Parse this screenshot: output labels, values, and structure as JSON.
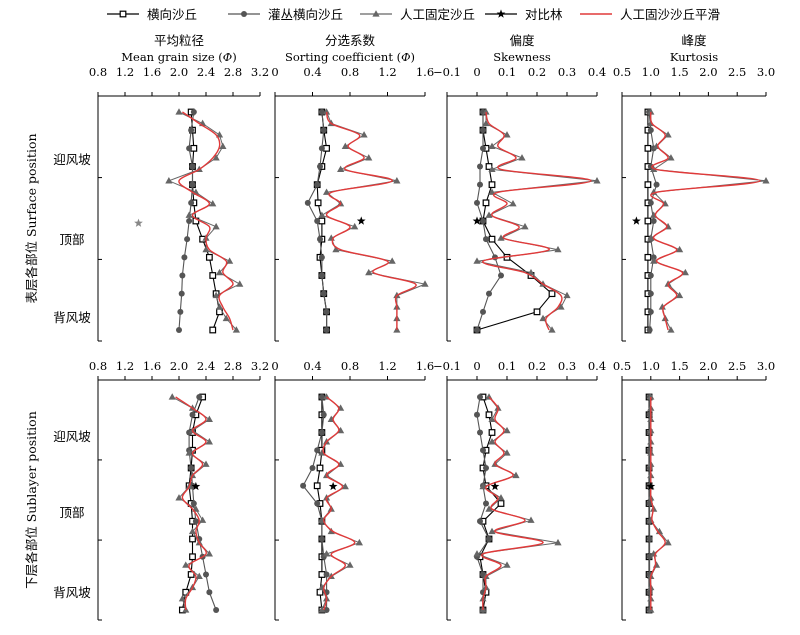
{
  "chart_data": {
    "type": "line",
    "legend": {
      "placement": "top",
      "entries": [
        {
          "name": "横向沙丘",
          "marker": "square-open",
          "color": "#000000"
        },
        {
          "name": "灌丛横向沙丘",
          "marker": "circle",
          "color": "#555555"
        },
        {
          "name": "人工固定沙丘",
          "marker": "triangle",
          "color": "#666666"
        },
        {
          "name": "对比林",
          "marker": "star",
          "color": "#000000"
        },
        {
          "name": "人工固沙沙丘平滑",
          "marker": "none",
          "color": "#e03a3a"
        }
      ]
    },
    "rows": [
      {
        "label": "表层各部位 Surface position",
        "categories": [
          "迎风坡",
          "顶部",
          "背风坡"
        ]
      },
      {
        "label": "下层各部位 Sublayer position",
        "categories": [
          "迎风坡",
          "顶部",
          "背风坡"
        ]
      }
    ],
    "panels": [
      {
        "title_cn": "平均粒径",
        "title_en_prefix": "Mean grain size (",
        "title_symbol": "Φ",
        "title_en_suffix": ")",
        "xlim": [
          0.8,
          3.2
        ],
        "ticks": [
          0.8,
          1.2,
          1.6,
          2.0,
          2.4,
          2.8,
          3.2
        ],
        "tick_labels": [
          "0.8",
          "1.2",
          "1.6",
          "2.0",
          "2.4",
          "2.8",
          "3.2"
        ],
        "surface": {
          "transverse": [
            2.18,
            2.2,
            2.22,
            2.2,
            2.2,
            2.22,
            2.25,
            2.35,
            2.45,
            2.5,
            2.55,
            2.6,
            2.5
          ],
          "shrub": [
            2.22,
            2.18,
            2.15,
            2.2,
            2.2,
            2.18,
            2.15,
            2.12,
            2.08,
            2.05,
            2.04,
            2.02,
            2.0
          ],
          "fixed": [
            2.0,
            2.35,
            2.6,
            2.65,
            2.55,
            2.3,
            1.85,
            2.25,
            2.5,
            2.15,
            2.55,
            2.4,
            2.4,
            2.75,
            2.6,
            2.9,
            2.55,
            2.6,
            2.7,
            2.85
          ],
          "smooth": [
            2.05,
            2.3,
            2.55,
            2.6,
            2.5,
            2.3,
            2.0,
            2.2,
            2.45,
            2.2,
            2.45,
            2.4,
            2.45,
            2.7,
            2.65,
            2.8,
            2.6,
            2.65,
            2.75,
            2.8
          ],
          "control": {
            "x": 1.4,
            "pos": 0.51
          }
        },
        "sublayer": {
          "transverse": [
            2.35,
            2.25,
            2.2,
            2.2,
            2.18,
            2.15,
            2.18,
            2.2,
            2.2,
            2.2,
            2.18,
            2.1,
            2.05
          ],
          "shrub": [
            2.3,
            2.2,
            2.15,
            2.15,
            2.18,
            2.2,
            2.22,
            2.25,
            2.3,
            2.35,
            2.4,
            2.45,
            2.55
          ],
          "fixed": [
            1.9,
            2.2,
            2.45,
            2.2,
            2.45,
            2.15,
            2.4,
            2.2,
            2.15,
            2.0,
            2.25,
            2.35,
            2.2,
            2.3,
            2.45,
            2.1,
            2.3,
            2.2,
            2.05,
            2.1
          ],
          "smooth": [
            1.95,
            2.2,
            2.4,
            2.2,
            2.4,
            2.2,
            2.35,
            2.2,
            2.15,
            2.05,
            2.2,
            2.3,
            2.25,
            2.3,
            2.4,
            2.15,
            2.25,
            2.2,
            2.1,
            2.1
          ],
          "control": {
            "x": 2.25,
            "pos": 0.42
          }
        }
      },
      {
        "title_cn": "分选系数",
        "title_en_prefix": "Sorting coefficient (",
        "title_symbol": "Φ",
        "title_en_suffix": ")",
        "xlim": [
          0,
          1.6
        ],
        "ticks": [
          0,
          0.4,
          0.8,
          1.2,
          1.6
        ],
        "tick_labels": [
          "0",
          "0.4",
          "0.8",
          "1.2",
          "1.6"
        ],
        "surface": {
          "transverse": [
            0.5,
            0.52,
            0.55,
            0.5,
            0.45,
            0.46,
            0.5,
            0.5,
            0.48,
            0.5,
            0.52,
            0.55,
            0.55
          ],
          "shrub": [
            0.5,
            0.52,
            0.5,
            0.48,
            0.45,
            0.35,
            0.45,
            0.48,
            0.5,
            0.5,
            0.52,
            0.55,
            0.55
          ],
          "fixed": [
            0.55,
            0.6,
            0.95,
            0.75,
            1.0,
            0.7,
            1.3,
            0.55,
            0.7,
            0.5,
            0.85,
            0.6,
            0.65,
            1.25,
            1.0,
            1.6,
            1.3,
            1.3,
            1.3,
            1.3
          ],
          "smooth": [
            0.55,
            0.6,
            0.9,
            0.78,
            0.95,
            0.75,
            1.25,
            0.6,
            0.7,
            0.55,
            0.8,
            0.62,
            0.7,
            1.2,
            1.05,
            1.5,
            1.3,
            1.3,
            1.3,
            1.3
          ],
          "control": {
            "x": 0.92,
            "pos": 0.5
          }
        },
        "sublayer": {
          "transverse": [
            0.5,
            0.5,
            0.5,
            0.5,
            0.48,
            0.45,
            0.48,
            0.5,
            0.5,
            0.5,
            0.5,
            0.48,
            0.5
          ],
          "shrub": [
            0.5,
            0.52,
            0.5,
            0.45,
            0.4,
            0.3,
            0.45,
            0.5,
            0.5,
            0.52,
            0.55,
            0.55,
            0.55
          ],
          "fixed": [
            0.55,
            0.7,
            0.6,
            0.7,
            0.55,
            0.5,
            0.7,
            0.55,
            0.75,
            0.55,
            0.6,
            0.5,
            0.6,
            0.9,
            0.55,
            0.8,
            0.6,
            0.5,
            0.55,
            0.5
          ],
          "smooth": [
            0.55,
            0.68,
            0.62,
            0.68,
            0.55,
            0.52,
            0.68,
            0.55,
            0.72,
            0.55,
            0.6,
            0.52,
            0.62,
            0.85,
            0.6,
            0.75,
            0.6,
            0.52,
            0.55,
            0.52
          ],
          "control": {
            "x": 0.62,
            "pos": 0.42
          }
        }
      },
      {
        "title_cn": "偏度",
        "title_en": "Skewness",
        "xlim": [
          -0.1,
          0.4
        ],
        "ticks": [
          -0.1,
          0,
          0.1,
          0.2,
          0.3,
          0.4
        ],
        "tick_labels": [
          "−0.1",
          "0",
          "0.1",
          "0.2",
          "0.3",
          "0.4"
        ],
        "surface": {
          "transverse": [
            0.02,
            0.02,
            0.03,
            0.04,
            0.05,
            0.03,
            0.02,
            0.05,
            0.1,
            0.18,
            0.25,
            0.2,
            0.0
          ],
          "shrub": [
            0.02,
            0.02,
            0.02,
            0.01,
            0.01,
            0.0,
            0.02,
            0.03,
            0.06,
            0.08,
            0.04,
            0.02,
            0.0
          ],
          "fixed": [
            0.03,
            0.03,
            0.1,
            0.05,
            0.15,
            0.05,
            0.4,
            0.05,
            0.12,
            0.04,
            0.16,
            0.08,
            0.27,
            0.0,
            0.18,
            0.22,
            0.3,
            0.28,
            0.22,
            0.25
          ],
          "smooth": [
            0.03,
            0.04,
            0.09,
            0.07,
            0.13,
            0.08,
            0.38,
            0.07,
            0.1,
            0.05,
            0.14,
            0.09,
            0.24,
            0.02,
            0.16,
            0.22,
            0.28,
            0.27,
            0.23,
            0.24
          ],
          "control": {
            "x": 0.0,
            "pos": 0.5
          }
        },
        "sublayer": {
          "transverse": [
            0.02,
            0.04,
            0.05,
            0.03,
            0.02,
            0.03,
            0.08,
            0.02,
            0.04,
            0.01,
            0.02,
            0.03,
            0.02
          ],
          "shrub": [
            0.01,
            0.0,
            0.01,
            0.02,
            0.03,
            0.02,
            0.03,
            0.01,
            0.04,
            0.0,
            0.02,
            0.02,
            0.02
          ],
          "fixed": [
            0.04,
            0.07,
            0.05,
            0.1,
            0.05,
            0.1,
            0.06,
            0.13,
            0.02,
            0.08,
            0.04,
            0.18,
            0.05,
            0.27,
            0.0,
            0.1,
            0.03,
            0.03,
            0.02,
            0.02
          ],
          "smooth": [
            0.04,
            0.07,
            0.06,
            0.09,
            0.06,
            0.09,
            0.06,
            0.12,
            0.03,
            0.07,
            0.05,
            0.16,
            0.06,
            0.22,
            0.02,
            0.08,
            0.03,
            0.03,
            0.02,
            0.02
          ],
          "control": {
            "x": 0.06,
            "pos": 0.42
          }
        }
      },
      {
        "title_cn": "峰度",
        "title_en": "Kurtosis",
        "xlim": [
          0.5,
          3.0
        ],
        "ticks": [
          0.5,
          1.0,
          1.5,
          2.0,
          2.5,
          3.0
        ],
        "tick_labels": [
          "0.5",
          "1.0",
          "1.5",
          "2.0",
          "2.5",
          "3.0"
        ],
        "surface": {
          "transverse": [
            0.95,
            0.95,
            0.95,
            0.95,
            0.95,
            0.95,
            0.95,
            0.95,
            0.95,
            0.95,
            0.95,
            0.95,
            0.95
          ],
          "shrub": [
            0.97,
            1.0,
            1.05,
            1.0,
            1.1,
            1.0,
            1.05,
            1.0,
            1.05,
            1.0,
            1.0,
            1.0,
            0.98
          ],
          "fixed": [
            1.0,
            1.0,
            1.3,
            1.1,
            1.35,
            1.05,
            3.0,
            1.05,
            1.25,
            1.05,
            1.3,
            1.0,
            1.5,
            1.05,
            1.6,
            1.3,
            1.5,
            1.2,
            1.25,
            1.35
          ],
          "smooth": [
            1.0,
            1.02,
            1.25,
            1.12,
            1.3,
            1.1,
            2.9,
            1.1,
            1.22,
            1.08,
            1.28,
            1.05,
            1.45,
            1.1,
            1.55,
            1.3,
            1.45,
            1.22,
            1.25,
            1.3
          ],
          "control": {
            "x": 0.75,
            "pos": 0.5
          }
        },
        "sublayer": {
          "transverse": [
            0.97,
            0.97,
            0.97,
            0.97,
            0.97,
            0.97,
            0.97,
            0.97,
            0.97,
            0.97,
            0.97,
            0.97,
            0.97
          ],
          "shrub": [
            0.98,
            0.98,
            0.98,
            0.98,
            0.98,
            0.98,
            0.98,
            0.98,
            0.98,
            0.98,
            0.98,
            0.98,
            0.98
          ],
          "fixed": [
            1.0,
            1.0,
            1.0,
            1.0,
            1.0,
            1.0,
            1.0,
            1.0,
            1.0,
            1.0,
            1.05,
            1.0,
            1.15,
            1.3,
            1.05,
            1.1,
            1.0,
            1.0,
            1.0,
            1.0
          ],
          "smooth": [
            1.0,
            1.0,
            1.0,
            1.0,
            1.0,
            1.0,
            1.0,
            1.0,
            1.0,
            1.0,
            1.04,
            1.02,
            1.12,
            1.25,
            1.08,
            1.08,
            1.0,
            1.0,
            1.0,
            1.0
          ],
          "control": {
            "x": 1.0,
            "pos": 0.42
          }
        }
      }
    ]
  }
}
